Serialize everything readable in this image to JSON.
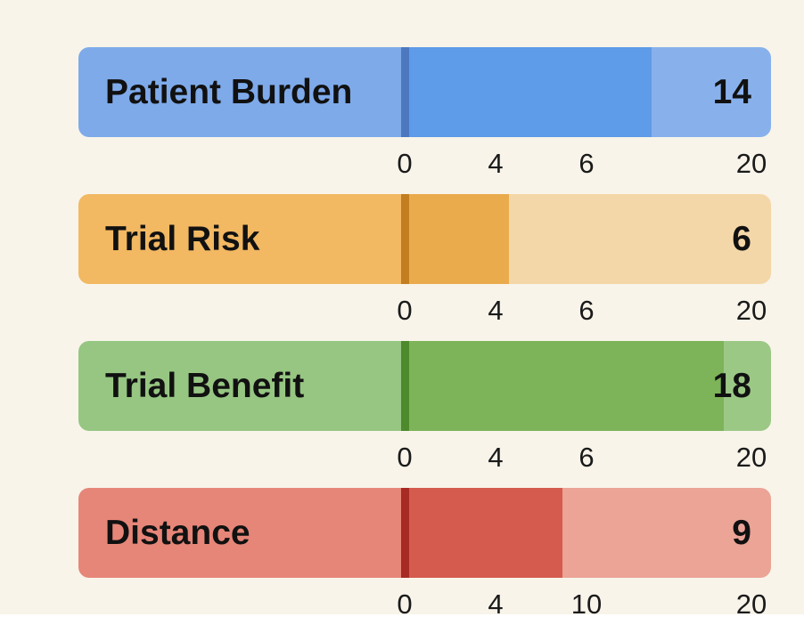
{
  "chart_data": {
    "type": "bar",
    "orientation": "horizontal",
    "categories": [
      "Patient Burden",
      "Trial Risk",
      "Trial Benefit",
      "Distance"
    ],
    "values": [
      14,
      6,
      18,
      9
    ],
    "xlim": [
      0,
      20
    ],
    "grid": false,
    "bars": [
      {
        "label": "Patient Burden",
        "value": 14,
        "value_label": "14",
        "ticks": [
          "0",
          "4",
          "6",
          "20"
        ],
        "colors": {
          "label_bg": "#7eaaea",
          "fill": "#5e9be8",
          "track": "#88b1ec",
          "zero_line": "#4d78c0"
        }
      },
      {
        "label": "Trial Risk",
        "value": 6,
        "value_label": "6",
        "ticks": [
          "0",
          "4",
          "6",
          "20"
        ],
        "colors": {
          "label_bg": "#f2b862",
          "fill": "#eaab4c",
          "track": "#f4d7a8",
          "zero_line": "#c27e20"
        }
      },
      {
        "label": "Trial Benefit",
        "value": 18,
        "value_label": "18",
        "ticks": [
          "0",
          "4",
          "6",
          "20"
        ],
        "colors": {
          "label_bg": "#96c682",
          "fill": "#7db359",
          "track": "#9cc886",
          "zero_line": "#4c8a2c"
        }
      },
      {
        "label": "Distance",
        "value": 9,
        "value_label": "9",
        "ticks": [
          "0",
          "4",
          "10",
          "20"
        ],
        "colors": {
          "label_bg": "#e68678",
          "fill": "#d45b4e",
          "track": "#eba496",
          "zero_line": "#a82a24"
        }
      }
    ]
  }
}
